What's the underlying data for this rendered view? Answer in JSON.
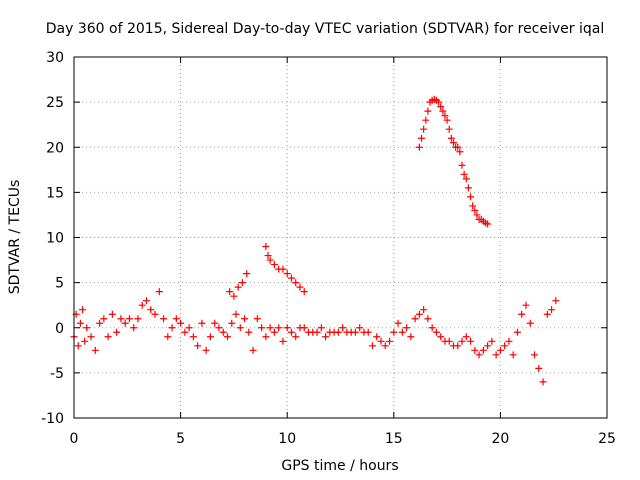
{
  "chart_data": {
    "type": "scatter",
    "title": "Day 360 of 2015, Sidereal Day-to-day VTEC variation (SDTVAR) for receiver iqal",
    "xlabel": "GPS time / hours",
    "ylabel": "SDTVAR / TECUs",
    "xlim": [
      0,
      25
    ],
    "ylim": [
      -10,
      30
    ],
    "xticks": [
      "0",
      "5",
      "10",
      "15",
      "20",
      "25"
    ],
    "yticks": [
      "-10",
      "-5",
      "0",
      "5",
      "10",
      "15",
      "20",
      "25",
      "30"
    ],
    "grid": true,
    "marker": "+",
    "color": "#ff0000",
    "series": [
      {
        "name": "SDTVAR",
        "x": [
          0.0,
          0.1,
          0.2,
          0.3,
          0.4,
          0.5,
          0.6,
          0.8,
          1.0,
          1.2,
          1.4,
          1.6,
          1.8,
          2.0,
          2.2,
          2.4,
          2.6,
          2.8,
          3.0,
          3.2,
          3.4,
          3.6,
          3.8,
          4.0,
          4.2,
          4.4,
          4.6,
          4.8,
          5.0,
          5.2,
          5.4,
          5.6,
          5.8,
          6.0,
          6.2,
          6.4,
          6.6,
          6.8,
          7.0,
          7.2,
          7.4,
          7.6,
          7.8,
          8.0,
          8.2,
          8.4,
          8.6,
          8.8,
          9.0,
          9.2,
          9.4,
          9.6,
          9.8,
          10.0,
          10.2,
          10.4,
          10.6,
          10.8,
          11.0,
          11.2,
          11.4,
          11.6,
          11.8,
          12.0,
          12.2,
          12.4,
          12.6,
          12.8,
          13.0,
          13.2,
          13.4,
          13.6,
          13.8,
          14.0,
          14.2,
          14.4,
          14.6,
          14.8,
          15.0,
          15.2,
          15.4,
          15.6,
          15.8,
          16.0,
          16.2,
          16.4,
          16.6,
          16.8,
          17.0,
          17.2,
          17.4,
          17.6,
          17.8,
          18.0,
          18.2,
          18.4,
          18.6,
          18.8,
          19.0,
          19.2,
          19.4,
          19.6,
          19.8,
          20.0,
          20.2,
          20.4,
          20.6,
          20.8,
          21.0,
          21.2,
          21.4,
          21.6,
          21.8,
          22.0,
          22.2,
          22.4,
          22.6,
          7.3,
          7.5,
          7.7,
          7.9,
          8.1,
          9.0,
          9.1,
          9.2,
          9.4,
          9.6,
          9.8,
          10.0,
          10.2,
          10.4,
          10.6,
          10.8,
          16.2,
          16.3,
          16.4,
          16.5,
          16.6,
          16.7,
          16.8,
          16.9,
          17.0,
          17.1,
          17.2,
          17.3,
          17.4,
          17.5,
          17.6,
          17.7,
          17.8,
          17.9,
          18.0,
          18.1,
          18.2,
          18.3,
          18.4,
          18.5,
          18.6,
          18.7,
          18.8,
          18.9,
          19.0,
          19.1,
          19.2,
          19.3,
          19.4
        ],
        "y": [
          -1.0,
          1.5,
          -2.0,
          0.5,
          2.0,
          -1.5,
          0.0,
          -1.0,
          -2.5,
          0.5,
          1.0,
          -1.0,
          1.5,
          -0.5,
          1.0,
          0.5,
          1.0,
          0.0,
          1.0,
          2.5,
          3.0,
          2.0,
          1.5,
          4.0,
          1.0,
          -1.0,
          0.0,
          1.0,
          0.5,
          -0.5,
          0.0,
          -1.0,
          -2.0,
          0.5,
          -2.5,
          -1.0,
          0.5,
          0.0,
          -0.5,
          -1.0,
          0.5,
          1.5,
          0.0,
          1.0,
          -0.5,
          -2.5,
          1.0,
          0.0,
          -1.0,
          0.0,
          -0.5,
          0.0,
          -1.5,
          0.0,
          -0.5,
          -1.0,
          0.0,
          0.0,
          -0.5,
          -0.5,
          -0.5,
          0.0,
          -1.0,
          -0.5,
          -0.5,
          -0.5,
          0.0,
          -0.5,
          -0.5,
          -0.5,
          0.0,
          -0.5,
          -0.5,
          -2.0,
          -1.0,
          -1.5,
          -2.0,
          -1.5,
          -0.5,
          0.5,
          -0.5,
          0.0,
          -1.0,
          1.0,
          1.5,
          2.0,
          1.0,
          0.0,
          -0.5,
          -1.0,
          -1.5,
          -1.5,
          -2.0,
          -2.0,
          -1.5,
          -1.0,
          -1.5,
          -2.5,
          -3.0,
          -2.5,
          -2.0,
          -1.5,
          -3.0,
          -2.5,
          -2.0,
          -1.5,
          -3.0,
          -0.5,
          1.5,
          2.5,
          0.5,
          -3.0,
          -4.5,
          -6.0,
          1.5,
          2.0,
          3.0,
          4.0,
          3.5,
          4.5,
          5.0,
          6.0,
          9.0,
          8.0,
          7.5,
          7.0,
          6.5,
          6.5,
          6.0,
          5.5,
          5.0,
          4.5,
          4.0,
          20.0,
          21.0,
          22.0,
          23.0,
          24.0,
          25.0,
          25.2,
          25.3,
          25.2,
          25.0,
          24.5,
          24.0,
          23.5,
          23.0,
          22.0,
          21.0,
          20.5,
          20.0,
          20.0,
          19.5,
          18.0,
          17.0,
          16.5,
          15.5,
          14.5,
          13.5,
          13.0,
          12.5,
          12.0,
          12.0,
          11.8,
          11.6,
          11.5
        ]
      }
    ]
  }
}
